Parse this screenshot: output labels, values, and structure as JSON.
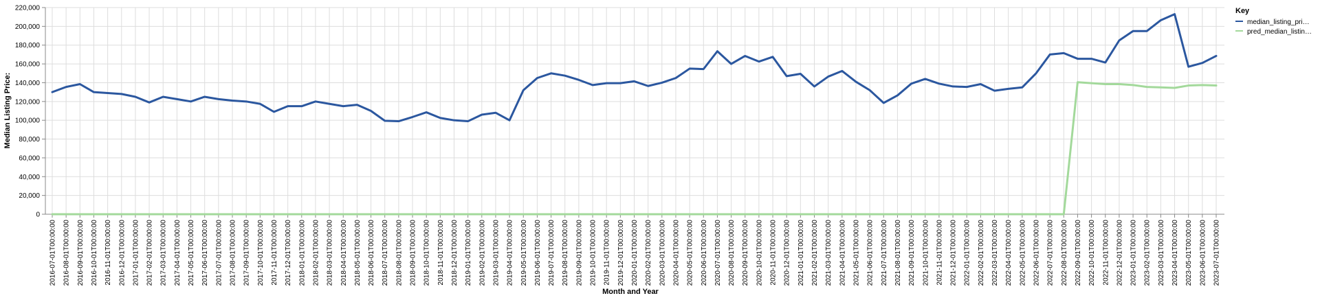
{
  "chart_data": {
    "type": "line",
    "xlabel": "Month and Year",
    "ylabel": "Median Listing Price:",
    "ylim": [
      0,
      220000
    ],
    "yticks": [
      0,
      20000,
      40000,
      60000,
      80000,
      100000,
      120000,
      140000,
      160000,
      180000,
      200000,
      220000
    ],
    "ytick_labels": [
      "0",
      "20,000",
      "40,000",
      "60,000",
      "80,000",
      "100,000",
      "120,000",
      "140,000",
      "160,000",
      "180,000",
      "200,000",
      "220,000"
    ],
    "grid": true,
    "legend_position": "top-right",
    "legend_title": "Key",
    "categories": [
      "2016-07-01T00:00:00",
      "2016-08-01T00:00:00",
      "2016-09-01T00:00:00",
      "2016-10-01T00:00:00",
      "2016-11-01T00:00:00",
      "2016-12-01T00:00:00",
      "2017-01-01T00:00:00",
      "2017-02-01T00:00:00",
      "2017-03-01T00:00:00",
      "2017-04-01T00:00:00",
      "2017-05-01T00:00:00",
      "2017-06-01T00:00:00",
      "2017-07-01T00:00:00",
      "2017-08-01T00:00:00",
      "2017-09-01T00:00:00",
      "2017-10-01T00:00:00",
      "2017-11-01T00:00:00",
      "2017-12-01T00:00:00",
      "2018-01-01T00:00:00",
      "2018-02-01T00:00:00",
      "2018-03-01T00:00:00",
      "2018-04-01T00:00:00",
      "2018-05-01T00:00:00",
      "2018-06-01T00:00:00",
      "2018-07-01T00:00:00",
      "2018-08-01T00:00:00",
      "2018-09-01T00:00:00",
      "2018-10-01T00:00:00",
      "2018-11-01T00:00:00",
      "2018-12-01T00:00:00",
      "2019-01-01T00:00:00",
      "2019-02-01T00:00:00",
      "2019-03-01T00:00:00",
      "2019-04-01T00:00:00",
      "2019-05-01T00:00:00",
      "2019-06-01T00:00:00",
      "2019-07-01T00:00:00",
      "2019-08-01T00:00:00",
      "2019-09-01T00:00:00",
      "2019-10-01T00:00:00",
      "2019-11-01T00:00:00",
      "2019-12-01T00:00:00",
      "2020-01-01T00:00:00",
      "2020-02-01T00:00:00",
      "2020-03-01T00:00:00",
      "2020-04-01T00:00:00",
      "2020-05-01T00:00:00",
      "2020-06-01T00:00:00",
      "2020-07-01T00:00:00",
      "2020-08-01T00:00:00",
      "2020-09-01T00:00:00",
      "2020-10-01T00:00:00",
      "2020-11-01T00:00:00",
      "2020-12-01T00:00:00",
      "2021-01-01T00:00:00",
      "2021-02-01T00:00:00",
      "2021-03-01T00:00:00",
      "2021-04-01T00:00:00",
      "2021-05-01T00:00:00",
      "2021-06-01T00:00:00",
      "2021-07-01T00:00:00",
      "2021-08-01T00:00:00",
      "2021-09-01T00:00:00",
      "2021-10-01T00:00:00",
      "2021-11-01T00:00:00",
      "2021-12-01T00:00:00",
      "2022-01-01T00:00:00",
      "2022-02-01T00:00:00",
      "2022-03-01T00:00:00",
      "2022-04-01T00:00:00",
      "2022-05-01T00:00:00",
      "2022-06-01T00:00:00",
      "2022-07-01T00:00:00",
      "2022-08-01T00:00:00",
      "2022-09-01T00:00:00",
      "2022-10-01T00:00:00",
      "2022-11-01T00:00:00",
      "2022-12-01T00:00:00",
      "2023-01-01T00:00:00",
      "2023-02-01T00:00:00",
      "2023-03-01T00:00:00",
      "2023-04-01T00:00:00",
      "2023-05-01T00:00:00",
      "2023-06-01T00:00:00",
      "2023-07-01T00:00:00"
    ],
    "series": [
      {
        "name": "median_listing_pri…",
        "color": "#2b579f",
        "values": [
          130000,
          135500,
          138500,
          130000,
          129000,
          128000,
          125000,
          119000,
          125000,
          122500,
          120000,
          125000,
          122500,
          121000,
          120000,
          117500,
          109000,
          115000,
          115000,
          120000,
          117500,
          115000,
          116500,
          110000,
          99500,
          99000,
          103500,
          108500,
          102500,
          100000,
          99000,
          106000,
          108000,
          100000,
          132000,
          145000,
          150000,
          147500,
          143000,
          137500,
          139500,
          139500,
          141500,
          136500,
          140000,
          145000,
          155000,
          154500,
          173500,
          160000,
          168500,
          162500,
          167500,
          147000,
          149500,
          136000,
          146500,
          152500,
          141000,
          132000,
          118500,
          126500,
          139000,
          144000,
          139000,
          136000,
          135500,
          138500,
          131500,
          133500,
          135000,
          150000,
          170000,
          171500,
          165500,
          165500,
          161500,
          185000,
          195000,
          195000,
          206500,
          213000,
          157000,
          161000,
          168500
        ]
      },
      {
        "name": "pred_median_listin…",
        "color": "#a3d99b",
        "values": [
          0,
          0,
          0,
          0,
          0,
          0,
          0,
          0,
          0,
          0,
          0,
          0,
          0,
          0,
          0,
          0,
          0,
          0,
          0,
          0,
          0,
          0,
          0,
          0,
          0,
          0,
          0,
          0,
          0,
          0,
          0,
          0,
          0,
          0,
          0,
          0,
          0,
          0,
          0,
          0,
          0,
          0,
          0,
          0,
          0,
          0,
          0,
          0,
          0,
          0,
          0,
          0,
          0,
          0,
          0,
          0,
          0,
          0,
          0,
          0,
          0,
          0,
          0,
          0,
          0,
          0,
          0,
          0,
          0,
          0,
          0,
          0,
          0,
          0,
          140500,
          139500,
          138500,
          138500,
          137500,
          135500,
          135000,
          134500,
          137000,
          137500,
          137000
        ]
      }
    ]
  }
}
